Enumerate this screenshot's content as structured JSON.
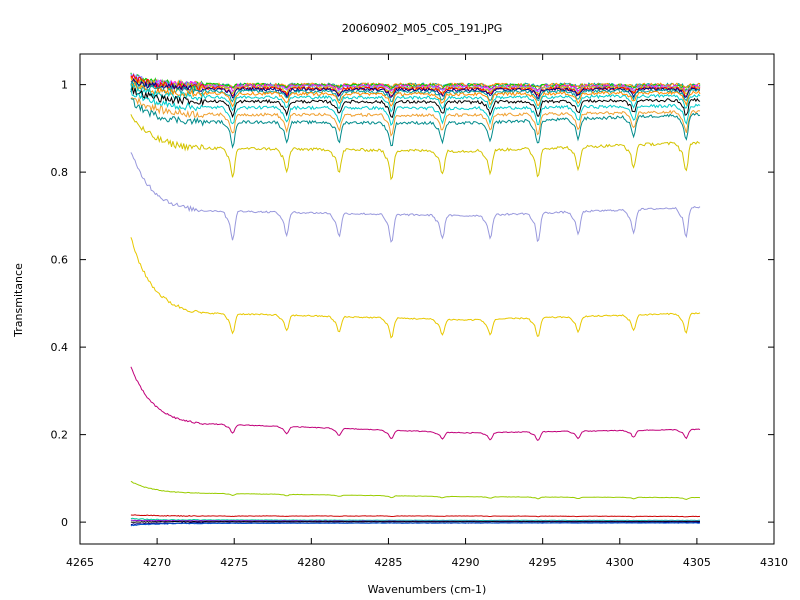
{
  "chart_data": {
    "type": "line",
    "title": "20060902_M05_C05_191.JPG",
    "xlabel": "Wavenumbers (cm-1)",
    "ylabel": "Transmitance",
    "xlim": [
      4265,
      4310
    ],
    "ylim": [
      -0.05,
      1.07
    ],
    "grid": false,
    "legend": "none",
    "x_ticks": [
      4265,
      4270,
      4275,
      4280,
      4285,
      4290,
      4295,
      4300,
      4305,
      4310
    ],
    "y_ticks": [
      0,
      0.2,
      0.4,
      0.6,
      0.8,
      1
    ],
    "x_range": [
      4268.3,
      4305.2
    ],
    "absorption_lines_cm1": [
      4274.9,
      4278.4,
      4281.8,
      4285.2,
      4288.5,
      4291.6,
      4294.7,
      4297.3,
      4300.9,
      4304.3
    ],
    "series": [
      {
        "color": "#00a0a0",
        "baseline": [
          1.0,
          1.0,
          1.0,
          1.0
        ],
        "depth": 0.005
      },
      {
        "color": "#ff8c00",
        "baseline": [
          1.01,
          1.0,
          1.0,
          1.0
        ],
        "depth": 0.006
      },
      {
        "color": "#00cc00",
        "baseline": [
          1.02,
          1.0,
          0.998,
          0.997
        ],
        "depth": 0.008
      },
      {
        "color": "#ff00ff",
        "baseline": [
          1.015,
          0.998,
          0.996,
          0.996
        ],
        "depth": 0.01
      },
      {
        "color": "#8888ff",
        "baseline": [
          1.02,
          0.996,
          0.994,
          0.995
        ],
        "depth": 0.012
      },
      {
        "color": "#d4c400",
        "baseline": [
          1.01,
          0.994,
          0.992,
          0.993
        ],
        "depth": 0.014
      },
      {
        "color": "#ff0000",
        "baseline": [
          1.02,
          0.992,
          0.99,
          0.992
        ],
        "depth": 0.016
      },
      {
        "color": "#000080",
        "baseline": [
          1.01,
          0.99,
          0.988,
          0.99
        ],
        "depth": 0.018
      },
      {
        "color": "#00a0a0",
        "baseline": [
          1.0,
          0.985,
          0.983,
          0.987
        ],
        "depth": 0.022
      },
      {
        "color": "#ff8c00",
        "baseline": [
          1.0,
          0.98,
          0.978,
          0.982
        ],
        "depth": 0.026
      },
      {
        "color": "#00cccc",
        "baseline": [
          0.995,
          0.972,
          0.97,
          0.975
        ],
        "depth": 0.03
      },
      {
        "color": "#000000",
        "baseline": [
          0.99,
          0.962,
          0.96,
          0.965
        ],
        "depth": 0.035
      },
      {
        "color": "#00cccc",
        "baseline": [
          0.985,
          0.948,
          0.946,
          0.952
        ],
        "depth": 0.04
      },
      {
        "color": "#f0a030",
        "baseline": [
          0.975,
          0.932,
          0.93,
          0.938
        ],
        "depth": 0.045
      },
      {
        "color": "#008b8b",
        "baseline": [
          0.965,
          0.915,
          0.912,
          0.932
        ],
        "depth": 0.055
      },
      {
        "color": "#d4c400",
        "baseline": [
          0.93,
          0.855,
          0.848,
          0.868
        ],
        "depth": 0.065
      },
      {
        "color": "#9999dd",
        "baseline": [
          0.845,
          0.712,
          0.7,
          0.72
        ],
        "depth": 0.065
      },
      {
        "color": "#e8c800",
        "baseline": [
          0.65,
          0.478,
          0.462,
          0.478
        ],
        "depth": 0.045
      },
      {
        "color": "#c0007a",
        "baseline": [
          0.355,
          0.225,
          0.204,
          0.212
        ],
        "depth": 0.02
      },
      {
        "color": "#99cc00",
        "baseline": [
          0.093,
          0.066,
          0.058,
          0.056
        ],
        "depth": 0.004
      },
      {
        "color": "#cc0000",
        "baseline": [
          0.017,
          0.014,
          0.014,
          0.013
        ],
        "depth": 0.001
      },
      {
        "color": "#00cc99",
        "baseline": [
          0.008,
          0.005,
          0.004,
          0.004
        ],
        "depth": 0.0
      },
      {
        "color": "#8800cc",
        "baseline": [
          0.004,
          0.003,
          0.002,
          0.002
        ],
        "depth": 0.0
      },
      {
        "color": "#000000",
        "baseline": [
          0.0,
          0.001,
          0.001,
          0.001
        ],
        "depth": 0.0
      },
      {
        "color": "#00008b",
        "baseline": [
          -0.005,
          -0.002,
          -0.002,
          -0.001
        ],
        "depth": 0.0
      },
      {
        "color": "#0055cc",
        "baseline": [
          -0.008,
          -0.003,
          -0.002,
          -0.002
        ],
        "depth": 0.0
      }
    ]
  }
}
